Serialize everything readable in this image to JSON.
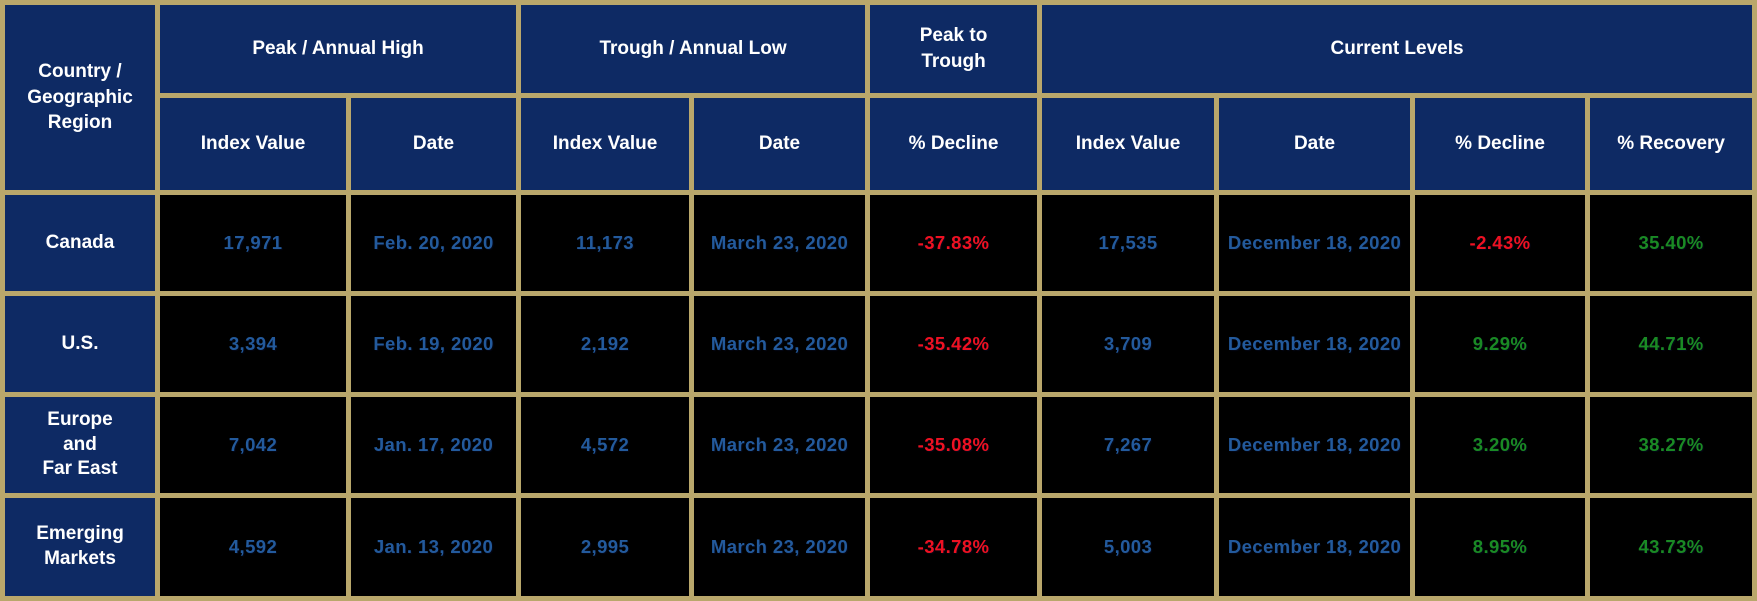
{
  "chart_data": {
    "type": "table",
    "corner_header": "Country /\nGeographic\nRegion",
    "groups": [
      {
        "label": "Peak / Annual High",
        "colspan": 2
      },
      {
        "label": "Trough / Annual Low",
        "colspan": 2
      },
      {
        "label": "Peak to\nTrough",
        "colspan": 1
      },
      {
        "label": "Current Levels",
        "colspan": 4
      }
    ],
    "columns": [
      "Index Value",
      "Date",
      "Index Value",
      "Date",
      "% Decline",
      "Index Value",
      "Date",
      "% Decline",
      "% Recovery"
    ],
    "rows": [
      {
        "region": "Canada",
        "cells": [
          {
            "text": "17,971",
            "color": "blue"
          },
          {
            "text": "Feb. 20, 2020",
            "color": "blue"
          },
          {
            "text": "11,173",
            "color": "blue"
          },
          {
            "text": "March 23, 2020",
            "color": "blue"
          },
          {
            "text": "-37.83%",
            "color": "red"
          },
          {
            "text": "17,535",
            "color": "blue"
          },
          {
            "text": "December 18, 2020",
            "color": "blue"
          },
          {
            "text": "-2.43%",
            "color": "red"
          },
          {
            "text": "35.40%",
            "color": "green"
          }
        ]
      },
      {
        "region": "U.S.",
        "cells": [
          {
            "text": "3,394",
            "color": "blue"
          },
          {
            "text": "Feb. 19, 2020",
            "color": "blue"
          },
          {
            "text": "2,192",
            "color": "blue"
          },
          {
            "text": "March 23, 2020",
            "color": "blue"
          },
          {
            "text": "-35.42%",
            "color": "red"
          },
          {
            "text": "3,709",
            "color": "blue"
          },
          {
            "text": "December 18, 2020",
            "color": "blue"
          },
          {
            "text": "9.29%",
            "color": "green"
          },
          {
            "text": "44.71%",
            "color": "green"
          }
        ]
      },
      {
        "region": "Europe\nand\nFar East",
        "cells": [
          {
            "text": "7,042",
            "color": "blue"
          },
          {
            "text": "Jan. 17, 2020",
            "color": "blue"
          },
          {
            "text": "4,572",
            "color": "blue"
          },
          {
            "text": "March 23, 2020",
            "color": "blue"
          },
          {
            "text": "-35.08%",
            "color": "red"
          },
          {
            "text": "7,267",
            "color": "blue"
          },
          {
            "text": "December 18, 2020",
            "color": "blue"
          },
          {
            "text": "3.20%",
            "color": "green"
          },
          {
            "text": "38.27%",
            "color": "green"
          }
        ]
      },
      {
        "region": "Emerging\nMarkets",
        "cells": [
          {
            "text": "4,592",
            "color": "blue"
          },
          {
            "text": "Jan. 13, 2020",
            "color": "blue"
          },
          {
            "text": "2,995",
            "color": "blue"
          },
          {
            "text": "March 23, 2020",
            "color": "blue"
          },
          {
            "text": "-34.78%",
            "color": "red"
          },
          {
            "text": "5,003",
            "color": "blue"
          },
          {
            "text": "December 18, 2020",
            "color": "blue"
          },
          {
            "text": "8.95%",
            "color": "green"
          },
          {
            "text": "43.73%",
            "color": "green"
          }
        ]
      }
    ]
  },
  "colors": {
    "header_bg": "#0e2a64",
    "header_text": "#ffffff",
    "border": "#b9a76b",
    "cell_bg": "#000000",
    "value_blue": "#235a9c",
    "decline_red": "#ee1122",
    "recovery_green": "#1a8a24"
  }
}
